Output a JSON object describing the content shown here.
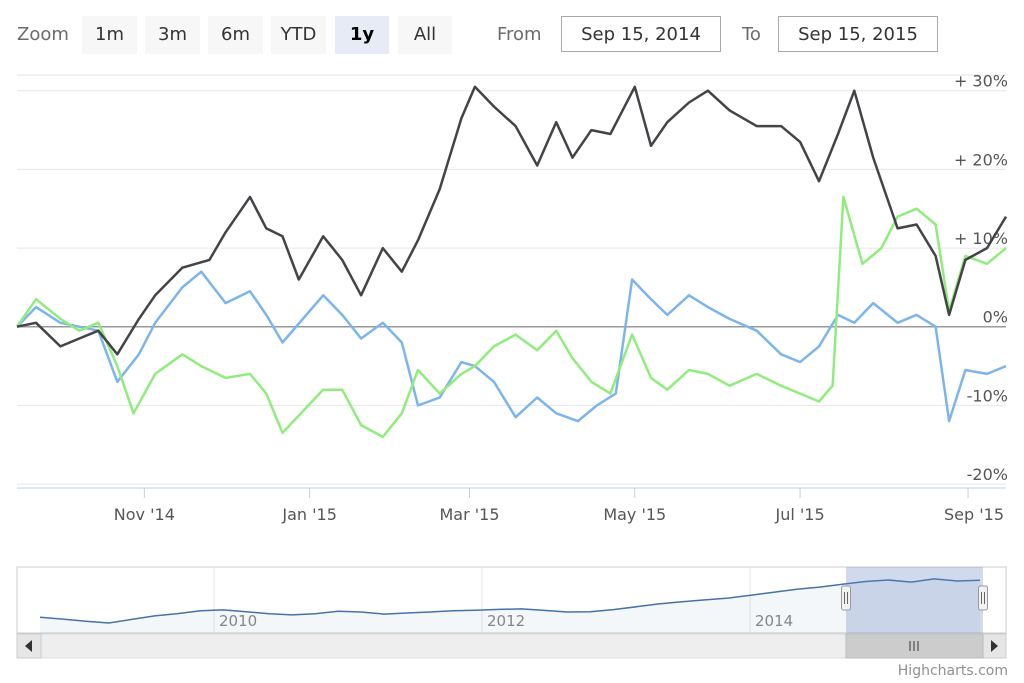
{
  "range_selector": {
    "zoom_label": "Zoom",
    "buttons": [
      "1m",
      "3m",
      "6m",
      "YTD",
      "1y",
      "All"
    ],
    "selected": "1y",
    "from_label": "From",
    "from_value": "Sep 15, 2014",
    "to_label": "To",
    "to_value": "Sep 15, 2015"
  },
  "credits": "Highcharts.com",
  "colors": {
    "black_series": "#434348",
    "blue_series": "#7cb5ec",
    "green_series": "#90ed7d",
    "navigator_line": "#4572a7",
    "navigator_mask": "rgba(102,133,194,0.3)"
  },
  "chart_data": {
    "type": "line",
    "x_start": "2014-09-15",
    "x_end": "2015-09-15",
    "x_ticks": [
      "Nov '14",
      "Jan '15",
      "Mar '15",
      "May '15",
      "Jul '15",
      "Sep '15"
    ],
    "x_tick_dates": [
      "2014-11-01",
      "2015-01-01",
      "2015-03-01",
      "2015-05-01",
      "2015-07-01",
      "2015-09-01"
    ],
    "y_ticks": [
      "+ 30%",
      "+ 20%",
      "+ 10%",
      "0%",
      "-10%",
      "-20%"
    ],
    "ylim": [
      -20,
      30
    ],
    "y_unit": "%",
    "series": [
      {
        "color": "#434348",
        "points": [
          [
            "2014-09-15",
            0.0
          ],
          [
            "2014-09-22",
            0.5
          ],
          [
            "2014-10-01",
            -2.5
          ],
          [
            "2014-10-08",
            -1.5
          ],
          [
            "2014-10-15",
            -0.5
          ],
          [
            "2014-10-22",
            -3.5
          ],
          [
            "2014-10-30",
            1.0
          ],
          [
            "2014-11-05",
            4.0
          ],
          [
            "2014-11-15",
            7.5
          ],
          [
            "2014-11-25",
            8.5
          ],
          [
            "2014-12-01",
            12.0
          ],
          [
            "2014-12-10",
            16.5
          ],
          [
            "2014-12-16",
            12.5
          ],
          [
            "2014-12-22",
            11.5
          ],
          [
            "2014-12-28",
            6.0
          ],
          [
            "2015-01-06",
            11.5
          ],
          [
            "2015-01-13",
            8.5
          ],
          [
            "2015-01-20",
            4.0
          ],
          [
            "2015-01-28",
            10.0
          ],
          [
            "2015-02-04",
            7.0
          ],
          [
            "2015-02-10",
            11.0
          ],
          [
            "2015-02-18",
            17.5
          ],
          [
            "2015-02-26",
            26.5
          ],
          [
            "2015-03-03",
            30.5
          ],
          [
            "2015-03-10",
            28.0
          ],
          [
            "2015-03-18",
            25.5
          ],
          [
            "2015-03-26",
            20.5
          ],
          [
            "2015-04-02",
            26.0
          ],
          [
            "2015-04-08",
            21.5
          ],
          [
            "2015-04-15",
            25.0
          ],
          [
            "2015-04-22",
            24.5
          ],
          [
            "2015-05-01",
            30.5
          ],
          [
            "2015-05-07",
            23.0
          ],
          [
            "2015-05-13",
            26.0
          ],
          [
            "2015-05-21",
            28.5
          ],
          [
            "2015-05-28",
            30.0
          ],
          [
            "2015-06-05",
            27.5
          ],
          [
            "2015-06-15",
            25.5
          ],
          [
            "2015-06-24",
            25.5
          ],
          [
            "2015-07-01",
            23.5
          ],
          [
            "2015-07-08",
            18.5
          ],
          [
            "2015-07-15",
            24.5
          ],
          [
            "2015-07-21",
            30.0
          ],
          [
            "2015-07-28",
            21.5
          ],
          [
            "2015-08-06",
            12.5
          ],
          [
            "2015-08-13",
            13.0
          ],
          [
            "2015-08-20",
            9.0
          ],
          [
            "2015-08-25",
            1.5
          ],
          [
            "2015-08-31",
            8.5
          ],
          [
            "2015-09-08",
            10.0
          ],
          [
            "2015-09-15",
            14.0
          ]
        ]
      },
      {
        "color": "#7cb5ec",
        "points": [
          [
            "2014-09-15",
            0.0
          ],
          [
            "2014-09-22",
            2.5
          ],
          [
            "2014-10-01",
            0.5
          ],
          [
            "2014-10-08",
            0.0
          ],
          [
            "2014-10-15",
            -0.5
          ],
          [
            "2014-10-22",
            -7.0
          ],
          [
            "2014-10-30",
            -3.5
          ],
          [
            "2014-11-05",
            0.5
          ],
          [
            "2014-11-15",
            5.0
          ],
          [
            "2014-11-22",
            7.0
          ],
          [
            "2014-12-01",
            3.0
          ],
          [
            "2014-12-10",
            4.5
          ],
          [
            "2014-12-16",
            1.5
          ],
          [
            "2014-12-22",
            -2.0
          ],
          [
            "2015-01-06",
            4.0
          ],
          [
            "2015-01-13",
            1.5
          ],
          [
            "2015-01-20",
            -1.5
          ],
          [
            "2015-01-28",
            0.5
          ],
          [
            "2015-02-04",
            -2.0
          ],
          [
            "2015-02-10",
            -10.0
          ],
          [
            "2015-02-18",
            -9.0
          ],
          [
            "2015-02-26",
            -4.5
          ],
          [
            "2015-03-03",
            -5.0
          ],
          [
            "2015-03-10",
            -7.0
          ],
          [
            "2015-03-18",
            -11.5
          ],
          [
            "2015-03-26",
            -9.0
          ],
          [
            "2015-04-02",
            -11.0
          ],
          [
            "2015-04-10",
            -12.0
          ],
          [
            "2015-04-17",
            -10.0
          ],
          [
            "2015-04-24",
            -8.5
          ],
          [
            "2015-04-30",
            6.0
          ],
          [
            "2015-05-07",
            3.5
          ],
          [
            "2015-05-13",
            1.5
          ],
          [
            "2015-05-21",
            4.0
          ],
          [
            "2015-05-28",
            2.5
          ],
          [
            "2015-06-05",
            1.0
          ],
          [
            "2015-06-15",
            -0.5
          ],
          [
            "2015-06-24",
            -3.5
          ],
          [
            "2015-07-01",
            -4.5
          ],
          [
            "2015-07-08",
            -2.5
          ],
          [
            "2015-07-15",
            1.5
          ],
          [
            "2015-07-21",
            0.5
          ],
          [
            "2015-07-28",
            3.0
          ],
          [
            "2015-08-06",
            0.5
          ],
          [
            "2015-08-13",
            1.5
          ],
          [
            "2015-08-20",
            0.0
          ],
          [
            "2015-08-25",
            -12.0
          ],
          [
            "2015-08-31",
            -5.5
          ],
          [
            "2015-09-08",
            -6.0
          ],
          [
            "2015-09-15",
            -5.0
          ]
        ]
      },
      {
        "color": "#90ed7d",
        "points": [
          [
            "2014-09-15",
            0.0
          ],
          [
            "2014-09-22",
            3.5
          ],
          [
            "2014-10-01",
            1.0
          ],
          [
            "2014-10-08",
            -0.5
          ],
          [
            "2014-10-15",
            0.5
          ],
          [
            "2014-10-22",
            -5.0
          ],
          [
            "2014-10-28",
            -11.0
          ],
          [
            "2014-11-05",
            -6.0
          ],
          [
            "2014-11-15",
            -3.5
          ],
          [
            "2014-11-22",
            -5.0
          ],
          [
            "2014-12-01",
            -6.5
          ],
          [
            "2014-12-10",
            -6.0
          ],
          [
            "2014-12-16",
            -8.5
          ],
          [
            "2014-12-22",
            -13.5
          ],
          [
            "2015-01-06",
            -8.0
          ],
          [
            "2015-01-13",
            -8.0
          ],
          [
            "2015-01-20",
            -12.5
          ],
          [
            "2015-01-28",
            -14.0
          ],
          [
            "2015-02-04",
            -11.0
          ],
          [
            "2015-02-10",
            -5.5
          ],
          [
            "2015-02-18",
            -8.5
          ],
          [
            "2015-02-26",
            -6.0
          ],
          [
            "2015-03-03",
            -5.0
          ],
          [
            "2015-03-10",
            -2.5
          ],
          [
            "2015-03-18",
            -1.0
          ],
          [
            "2015-03-26",
            -3.0
          ],
          [
            "2015-04-02",
            -0.5
          ],
          [
            "2015-04-08",
            -4.0
          ],
          [
            "2015-04-15",
            -7.0
          ],
          [
            "2015-04-22",
            -8.5
          ],
          [
            "2015-04-30",
            -1.0
          ],
          [
            "2015-05-07",
            -6.5
          ],
          [
            "2015-05-13",
            -8.0
          ],
          [
            "2015-05-21",
            -5.5
          ],
          [
            "2015-05-28",
            -6.0
          ],
          [
            "2015-06-05",
            -7.5
          ],
          [
            "2015-06-15",
            -6.0
          ],
          [
            "2015-06-24",
            -7.5
          ],
          [
            "2015-07-01",
            -8.5
          ],
          [
            "2015-07-08",
            -9.5
          ],
          [
            "2015-07-13",
            -7.5
          ],
          [
            "2015-07-17",
            16.5
          ],
          [
            "2015-07-24",
            8.0
          ],
          [
            "2015-07-31",
            10.0
          ],
          [
            "2015-08-06",
            14.0
          ],
          [
            "2015-08-13",
            15.0
          ],
          [
            "2015-08-20",
            13.0
          ],
          [
            "2015-08-25",
            2.0
          ],
          [
            "2015-08-31",
            9.0
          ],
          [
            "2015-09-08",
            8.0
          ],
          [
            "2015-09-15",
            10.0
          ]
        ]
      }
    ],
    "navigator": {
      "year_labels": [
        "2010",
        "2012",
        "2014"
      ],
      "values": [
        2.0,
        1.3,
        0.5,
        -0.2,
        1.2,
        2.5,
        3.4,
        4.5,
        4.8,
        4.1,
        3.3,
        2.9,
        3.3,
        4.3,
        4.0,
        3.2,
        3.6,
        4.0,
        4.5,
        4.7,
        5.0,
        5.2,
        4.6,
        4.0,
        4.1,
        4.9,
        6.0,
        7.1,
        7.9,
        8.6,
        9.3,
        10.4,
        11.5,
        12.7,
        13.5,
        14.6,
        15.6,
        16.2,
        15.4,
        16.6,
        15.8,
        16.1
      ],
      "selection": "Sep 2014 – Sep 2015"
    }
  }
}
